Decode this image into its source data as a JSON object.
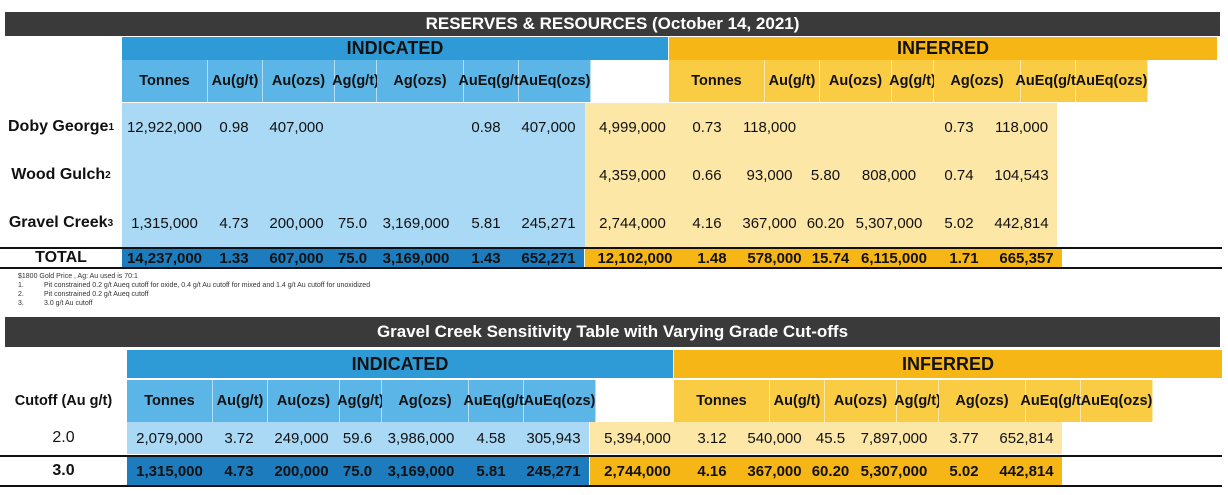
{
  "top": {
    "title": "RESERVES & RESOURCES (October 14, 2021)",
    "indicated_label": "INDICATED",
    "inferred_label": "INFERRED",
    "headers": [
      [
        "Tonnes"
      ],
      [
        "Au",
        "(g/t)"
      ],
      [
        "Au",
        "(ozs)"
      ],
      [
        "Ag",
        "(g/t)"
      ],
      [
        "Ag",
        "(ozs)"
      ],
      [
        "AuEq",
        "(g/t)"
      ],
      [
        "AuEq",
        "(ozs)"
      ]
    ],
    "rows": [
      {
        "name": "Doby George",
        "sub": "1",
        "indicated": [
          "12,922,000",
          "0.98",
          "407,000",
          "",
          "",
          "0.98",
          "407,000"
        ],
        "inferred": [
          "4,999,000",
          "0.73",
          "118,000",
          "",
          "",
          "0.73",
          "118,000"
        ]
      },
      {
        "name": "Wood Gulch",
        "sub": "2",
        "indicated": [
          "",
          "",
          "",
          "",
          "",
          "",
          ""
        ],
        "inferred": [
          "4,359,000",
          "0.66",
          "93,000",
          "5.80",
          "808,000",
          "0.74",
          "104,543"
        ]
      },
      {
        "name": "Gravel Creek",
        "sub": "3",
        "indicated": [
          "1,315,000",
          "4.73",
          "200,000",
          "75.0",
          "3,169,000",
          "5.81",
          "245,271"
        ],
        "inferred": [
          "2,744,000",
          "4.16",
          "367,000",
          "60.20",
          "5,307,000",
          "5.02",
          "442,814"
        ]
      }
    ],
    "total": {
      "name": "TOTAL",
      "indicated": [
        "14,237,000",
        "1.33",
        "607,000",
        "75.0",
        "3,169,000",
        "1.43",
        "652,271"
      ],
      "inferred": [
        "12,102,000",
        "1.48",
        "578,000",
        "15.74",
        "6,115,000",
        "1.71",
        "665,357"
      ]
    }
  },
  "notes": {
    "line0": "$1800 Gold Price , Ag: Au used is 70:1",
    "items": [
      {
        "num": "1.",
        "text": "Pit constrained 0.2 g/t Aueq cutoff for oxide, 0.4 g/t Au cutoff for mixed and 1.4 g/t Au cutoff for unoxidized"
      },
      {
        "num": "2.",
        "text": "Pit constrained 0.2 g/t Aueq cutoff"
      },
      {
        "num": "3.",
        "text": "3.0 g/t Au cutoff"
      }
    ]
  },
  "bottom": {
    "title": "Gravel Creek Sensitivity Table with Varying Grade Cut-offs",
    "indicated_label": "INDICATED",
    "inferred_label": "INFERRED",
    "cutoff_label": "Cutoff (Au g/t)",
    "headers": [
      [
        "Tonnes"
      ],
      [
        "Au",
        "(g/t)"
      ],
      [
        "Au",
        "(ozs)"
      ],
      [
        "Ag",
        "(g/t)"
      ],
      [
        "Ag",
        "(ozs)"
      ],
      [
        "AuEq",
        "(g/t)"
      ],
      [
        "AuEq",
        "(ozs)"
      ]
    ],
    "rows": [
      {
        "name": "2.0",
        "indicated": [
          "2,079,000",
          "3.72",
          "249,000",
          "59.6",
          "3,986,000",
          "4.58",
          "305,943"
        ],
        "inferred": [
          "5,394,000",
          "3.12",
          "540,000",
          "45.5",
          "7,897,000",
          "3.77",
          "652,814"
        ]
      }
    ],
    "highlight": {
      "name": "3.0",
      "indicated": [
        "1,315,000",
        "4.73",
        "200,000",
        "75.0",
        "3,169,000",
        "5.81",
        "245,271"
      ],
      "inferred": [
        "2,744,000",
        "4.16",
        "367,000",
        "60.20",
        "5,307,000",
        "5.02",
        "442,814"
      ]
    }
  },
  "colors": {
    "title_bg": "#3a3a3a",
    "indicated_group": "#2e9bd6",
    "indicated_header": "#5bb5e6",
    "indicated_cell": "#a9d9f5",
    "indicated_total": "#1c7cbd",
    "inferred_group": "#f6b615",
    "inferred_header": "#f9cc44",
    "inferred_cell": "#fde7a6",
    "inferred_total": "#f6b615"
  }
}
